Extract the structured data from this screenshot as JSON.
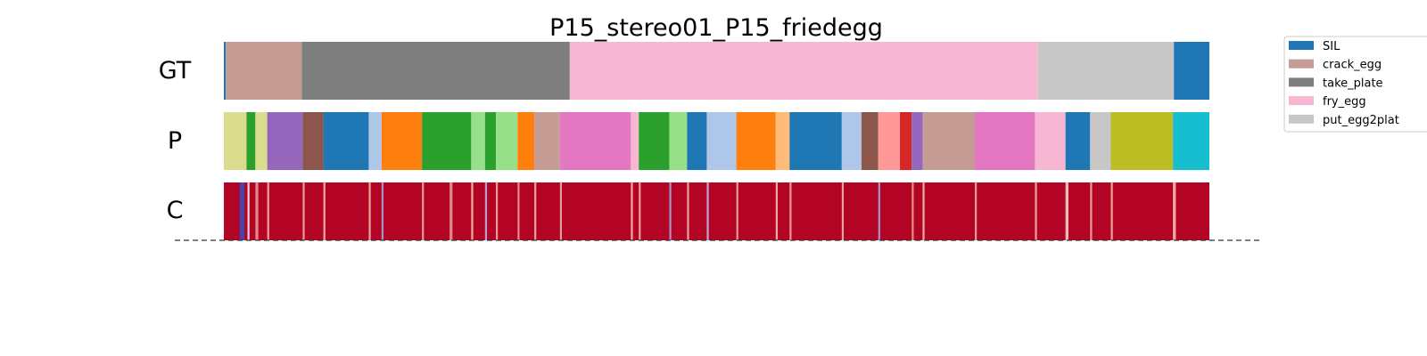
{
  "title": "P15_stereo01_P15_friedegg",
  "rows": [
    {
      "key": "gt",
      "label": "GT"
    },
    {
      "key": "p",
      "label": "P"
    },
    {
      "key": "c",
      "label": "C"
    }
  ],
  "legend": [
    {
      "label": "SIL",
      "color": "#1f77b4"
    },
    {
      "label": "crack_egg",
      "color": "#c49c94"
    },
    {
      "label": "take_plate",
      "color": "#7f7f7f"
    },
    {
      "label": "fry_egg",
      "color": "#f7b6d2"
    },
    {
      "label": "put_egg2plat",
      "color": "#c7c7c7"
    }
  ],
  "chart_data": {
    "type": "heatmap",
    "title": "P15_stereo01_P15_friedegg",
    "x_range": [
      0,
      1000
    ],
    "rows": [
      "GT",
      "P",
      "C"
    ],
    "gt_segments": [
      {
        "start": 0,
        "end": 2,
        "label": "SIL",
        "color": "#1f77b4"
      },
      {
        "start": 2,
        "end": 79,
        "label": "crack_egg",
        "color": "#c49c94"
      },
      {
        "start": 79,
        "end": 351,
        "label": "take_plate",
        "color": "#7f7f7f"
      },
      {
        "start": 351,
        "end": 826,
        "label": "fry_egg",
        "color": "#f7b6d2"
      },
      {
        "start": 826,
        "end": 964,
        "label": "put_egg2plat",
        "color": "#c7c7c7"
      },
      {
        "start": 964,
        "end": 1000,
        "label": "SIL",
        "color": "#1f77b4"
      }
    ],
    "p_segments": [
      {
        "start": 0,
        "end": 23,
        "color": "#dbdb8d"
      },
      {
        "start": 23,
        "end": 32,
        "color": "#2ca02c"
      },
      {
        "start": 32,
        "end": 44,
        "color": "#dbdb8d"
      },
      {
        "start": 44,
        "end": 80,
        "color": "#9467bd"
      },
      {
        "start": 80,
        "end": 101,
        "color": "#8c564b"
      },
      {
        "start": 101,
        "end": 147,
        "color": "#1f77b4"
      },
      {
        "start": 147,
        "end": 160,
        "color": "#aec7e8"
      },
      {
        "start": 160,
        "end": 201,
        "color": "#ff7f0e"
      },
      {
        "start": 201,
        "end": 251,
        "color": "#2ca02c"
      },
      {
        "start": 251,
        "end": 265,
        "color": "#98df8a"
      },
      {
        "start": 265,
        "end": 276,
        "color": "#2ca02c"
      },
      {
        "start": 276,
        "end": 298,
        "color": "#98df8a"
      },
      {
        "start": 298,
        "end": 315,
        "color": "#ff7f0e"
      },
      {
        "start": 315,
        "end": 341,
        "color": "#c49c94"
      },
      {
        "start": 341,
        "end": 413,
        "color": "#e377c2"
      },
      {
        "start": 413,
        "end": 421,
        "color": "#f7b6d2"
      },
      {
        "start": 421,
        "end": 452,
        "color": "#2ca02c"
      },
      {
        "start": 452,
        "end": 470,
        "color": "#98df8a"
      },
      {
        "start": 470,
        "end": 490,
        "color": "#1f77b4"
      },
      {
        "start": 490,
        "end": 520,
        "color": "#aec7e8"
      },
      {
        "start": 520,
        "end": 560,
        "color": "#ff7f0e"
      },
      {
        "start": 560,
        "end": 574,
        "color": "#ffbb78"
      },
      {
        "start": 574,
        "end": 627,
        "color": "#1f77b4"
      },
      {
        "start": 627,
        "end": 647,
        "color": "#aec7e8"
      },
      {
        "start": 647,
        "end": 664,
        "color": "#8c564b"
      },
      {
        "start": 664,
        "end": 686,
        "color": "#ff9896"
      },
      {
        "start": 686,
        "end": 698,
        "color": "#d62728"
      },
      {
        "start": 698,
        "end": 709,
        "color": "#9467bd"
      },
      {
        "start": 709,
        "end": 762,
        "color": "#c49c94"
      },
      {
        "start": 762,
        "end": 823,
        "color": "#e377c2"
      },
      {
        "start": 823,
        "end": 854,
        "color": "#f7b6d2"
      },
      {
        "start": 854,
        "end": 879,
        "color": "#1f77b4"
      },
      {
        "start": 879,
        "end": 900,
        "color": "#c7c7c7"
      },
      {
        "start": 900,
        "end": 963,
        "color": "#bcbd22"
      },
      {
        "start": 963,
        "end": 1000,
        "color": "#17becf"
      }
    ],
    "confidence_base_color": "#b40426",
    "confidence_dips": [
      {
        "x": 16,
        "width": 5,
        "color": "#3b4cc0"
      },
      {
        "x": 24,
        "width": 2,
        "color": "#f5f5f5"
      },
      {
        "x": 32,
        "width": 3,
        "color": "#e8a090"
      },
      {
        "x": 44,
        "width": 2,
        "color": "#f2c0a8"
      },
      {
        "x": 80,
        "width": 2,
        "color": "#f0b8a0"
      },
      {
        "x": 101,
        "width": 2,
        "color": "#f5cbb5"
      },
      {
        "x": 147,
        "width": 2,
        "color": "#f2c0a8"
      },
      {
        "x": 160,
        "width": 2,
        "color": "#9ab0e8"
      },
      {
        "x": 201,
        "width": 2,
        "color": "#f0b8a0"
      },
      {
        "x": 229,
        "width": 3,
        "color": "#e8a090"
      },
      {
        "x": 251,
        "width": 2,
        "color": "#f5cbb5"
      },
      {
        "x": 265,
        "width": 2,
        "color": "#aabfea"
      },
      {
        "x": 276,
        "width": 2,
        "color": "#f0b8a0"
      },
      {
        "x": 298,
        "width": 2,
        "color": "#eaa890"
      },
      {
        "x": 315,
        "width": 2,
        "color": "#f2c0a8"
      },
      {
        "x": 341,
        "width": 2,
        "color": "#f0b8a0"
      },
      {
        "x": 413,
        "width": 2,
        "color": "#f5cbb5"
      },
      {
        "x": 421,
        "width": 2,
        "color": "#f0b8a0"
      },
      {
        "x": 452,
        "width": 2,
        "color": "#9ab0e8"
      },
      {
        "x": 470,
        "width": 2,
        "color": "#f2c0a8"
      },
      {
        "x": 490,
        "width": 2,
        "color": "#b8c8ee"
      },
      {
        "x": 520,
        "width": 2,
        "color": "#f0b8a0"
      },
      {
        "x": 560,
        "width": 2,
        "color": "#f5cbb5"
      },
      {
        "x": 574,
        "width": 2,
        "color": "#f0b8a0"
      },
      {
        "x": 627,
        "width": 2,
        "color": "#f2c0a8"
      },
      {
        "x": 664,
        "width": 2,
        "color": "#9ab0e8"
      },
      {
        "x": 698,
        "width": 2,
        "color": "#eaa890"
      },
      {
        "x": 709,
        "width": 2,
        "color": "#f5cbb5"
      },
      {
        "x": 762,
        "width": 2,
        "color": "#f0b8a0"
      },
      {
        "x": 823,
        "width": 2,
        "color": "#f2c0a8"
      },
      {
        "x": 854,
        "width": 3,
        "color": "#f5dccd"
      },
      {
        "x": 879,
        "width": 2,
        "color": "#f0b8a0"
      },
      {
        "x": 900,
        "width": 2,
        "color": "#f2c0a8"
      },
      {
        "x": 963,
        "width": 3,
        "color": "#f5cbb5"
      }
    ]
  }
}
